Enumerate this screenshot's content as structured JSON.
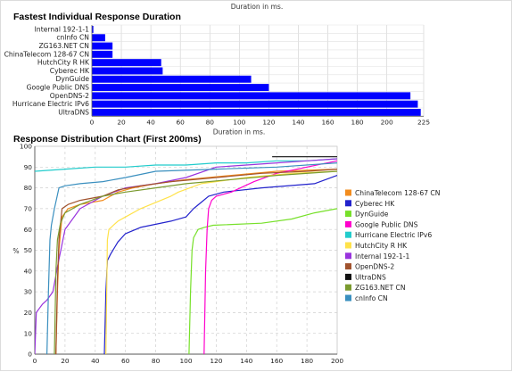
{
  "chart_data": [
    {
      "type": "bar",
      "orientation": "horizontal",
      "top_axis_label": "Duration in ms.",
      "title": "Fastest Individual Response Duration",
      "xlabel": "Duration in ms.",
      "xlim": [
        0,
        225
      ],
      "xticks": [
        0,
        20,
        40,
        60,
        80,
        100,
        120,
        140,
        160,
        180,
        200,
        225
      ],
      "grid": true,
      "bar_color": "#0000ff",
      "categories": [
        "Internal 192-1-1",
        "cnlnfo CN",
        "ZG163.NET CN",
        "ChinaTelecom 128-67 CN",
        "HutchCity R HK",
        "Cyberec HK",
        "DynGuide",
        "Google Public DNS",
        "OpenDNS-2",
        "Hurricane Electric IPv6",
        "UltraDNS"
      ],
      "values": [
        1,
        9,
        14,
        14,
        47,
        48,
        108,
        120,
        216,
        221,
        223
      ]
    },
    {
      "type": "line",
      "title": "Response Distribution Chart (First 200ms)",
      "ylabel": "%",
      "xlim": [
        0,
        200
      ],
      "ylim": [
        0,
        100
      ],
      "xticks": [
        0,
        20,
        40,
        60,
        80,
        100,
        120,
        140,
        160,
        180,
        200
      ],
      "yticks": [
        0,
        10,
        20,
        30,
        40,
        50,
        60,
        70,
        80,
        90,
        100
      ],
      "grid": "dashed",
      "legend": "right",
      "series": [
        {
          "name": "ChinaTelecom 128-67 CN",
          "color": "#f28c1e",
          "x": [
            14,
            15,
            16,
            18,
            22,
            30,
            45,
            55,
            65,
            80,
            100,
            130,
            160,
            200
          ],
          "y": [
            0,
            30,
            50,
            66,
            70,
            72,
            74,
            78,
            80,
            82,
            84,
            86,
            88,
            89
          ]
        },
        {
          "name": "Cyberec HK",
          "color": "#2222cc",
          "x": [
            46,
            47,
            48,
            50,
            55,
            60,
            70,
            90,
            100,
            105,
            110,
            115,
            125,
            150,
            185,
            200
          ],
          "y": [
            0,
            30,
            45,
            48,
            54,
            58,
            61,
            64,
            66,
            70,
            73,
            76,
            78,
            80,
            82,
            86
          ]
        },
        {
          "name": "DynGuide",
          "color": "#77e02a",
          "x": [
            102,
            103,
            104,
            105,
            108,
            112,
            118,
            150,
            170,
            185,
            200
          ],
          "y": [
            0,
            30,
            50,
            56,
            60,
            61,
            62,
            63,
            65,
            68,
            70
          ]
        },
        {
          "name": "Google Public DNS",
          "color": "#ff00cc",
          "x": [
            112,
            113,
            114,
            115,
            117,
            120,
            130,
            145,
            160,
            180,
            200
          ],
          "y": [
            0,
            40,
            60,
            70,
            74,
            76,
            78,
            83,
            87,
            90,
            93
          ]
        },
        {
          "name": "Hurricane Electric IPv6",
          "color": "#22cccc",
          "x": [
            0,
            20,
            40,
            60,
            80,
            100,
            120,
            140,
            160,
            180,
            200
          ],
          "y": [
            88,
            89,
            90,
            90,
            91,
            91,
            92,
            92,
            93,
            93,
            94
          ]
        },
        {
          "name": "HutchCity R HK",
          "color": "#ffe24a",
          "x": [
            47,
            48,
            49,
            52,
            55,
            60,
            70,
            80,
            90,
            95,
            110,
            140,
            170,
            200
          ],
          "y": [
            0,
            55,
            60,
            62,
            64,
            66,
            70,
            73,
            76,
            78,
            82,
            85,
            87,
            88
          ]
        },
        {
          "name": "Internal 192-1-1",
          "color": "#9933dd",
          "x": [
            0,
            1,
            3,
            5,
            8,
            12,
            15,
            20,
            30,
            45,
            60,
            80,
            100,
            120,
            140,
            160,
            180,
            200
          ],
          "y": [
            0,
            20,
            22,
            24,
            26,
            30,
            42,
            60,
            70,
            76,
            80,
            82,
            85,
            90,
            91,
            92,
            93,
            94
          ]
        },
        {
          "name": "OpenDNS-2",
          "color": "#a0522d",
          "x": [
            14,
            15,
            16,
            18,
            22,
            30,
            45,
            55,
            70,
            90,
            120,
            150,
            180,
            200
          ],
          "y": [
            0,
            35,
            55,
            70,
            72,
            74,
            76,
            79,
            81,
            83,
            85,
            87,
            88,
            89
          ]
        },
        {
          "name": "UltraDNS",
          "color": "#111111",
          "x": [
            157,
            160,
            180,
            200
          ],
          "y": [
            95,
            95,
            95,
            95
          ]
        },
        {
          "name": "ZG163.NET CN",
          "color": "#7a9a2e",
          "x": [
            13,
            14,
            15,
            17,
            20,
            30,
            45,
            60,
            80,
            100,
            130,
            160,
            200
          ],
          "y": [
            0,
            40,
            55,
            63,
            68,
            72,
            76,
            78,
            80,
            82,
            84,
            86,
            88
          ]
        },
        {
          "name": "cnlnfo CN",
          "color": "#3a8fbf",
          "x": [
            8,
            9,
            10,
            11,
            13,
            16,
            20,
            30,
            45,
            60,
            80,
            120,
            160,
            200
          ],
          "y": [
            0,
            30,
            55,
            62,
            70,
            80,
            81,
            82,
            83,
            85,
            88,
            89,
            90,
            92
          ]
        }
      ]
    }
  ]
}
